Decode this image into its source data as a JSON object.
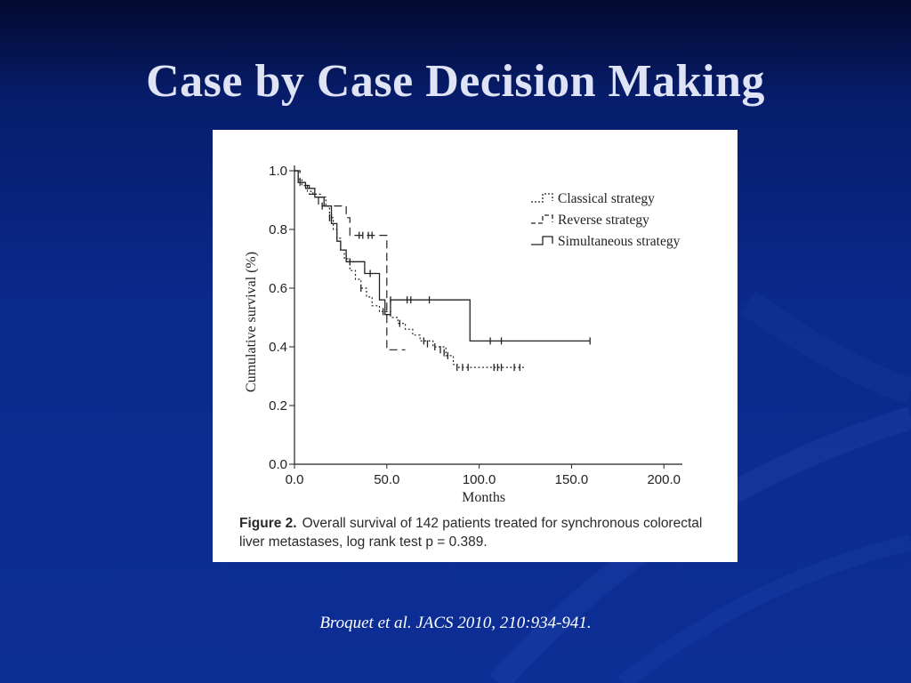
{
  "slide": {
    "title": "Case by Case Decision Making",
    "citation_authors": "Broquet et al",
    "citation_rest": ". JACS 2010, 210:934-941."
  },
  "figure": {
    "label": "Figure 2.",
    "caption": "Overall survival of 142 patients treated for synchronous colorectal liver metastases, log rank test p = 0.389."
  },
  "colors": {
    "background": "#0a2a8c",
    "title": "#dfe3f6",
    "panel": "#ffffff",
    "ink": "#222222"
  },
  "chart_data": {
    "type": "line",
    "xlabel": "Months",
    "ylabel": "Cumulative survival (%)",
    "xlim": [
      0,
      210
    ],
    "ylim": [
      0,
      1.0
    ],
    "xticks": [
      0,
      50,
      100,
      150,
      200
    ],
    "xtick_labels": [
      "0.0",
      "50.0",
      "100.0",
      "150.0",
      "200.0"
    ],
    "yticks": [
      0,
      0.2,
      0.4,
      0.6,
      0.8,
      1.0
    ],
    "ytick_labels": [
      "0.0",
      "0.2",
      "0.4",
      "0.6",
      "0.8",
      "1.0"
    ],
    "legend_position": "top-right",
    "grid": false,
    "series": [
      {
        "name": "Classical strategy",
        "style": "dotted",
        "steps": [
          [
            0,
            1.0
          ],
          [
            2,
            0.97
          ],
          [
            4,
            0.95
          ],
          [
            7,
            0.93
          ],
          [
            10,
            0.92
          ],
          [
            14,
            0.91
          ],
          [
            17,
            0.88
          ],
          [
            19,
            0.84
          ],
          [
            21,
            0.8
          ],
          [
            23,
            0.77
          ],
          [
            25,
            0.73
          ],
          [
            27,
            0.7
          ],
          [
            30,
            0.66
          ],
          [
            33,
            0.63
          ],
          [
            36,
            0.6
          ],
          [
            39,
            0.57
          ],
          [
            42,
            0.54
          ],
          [
            46,
            0.52
          ],
          [
            52,
            0.5
          ],
          [
            56,
            0.48
          ],
          [
            60,
            0.46
          ],
          [
            64,
            0.44
          ],
          [
            68,
            0.42
          ],
          [
            75,
            0.4
          ],
          [
            82,
            0.37
          ],
          [
            86,
            0.34
          ],
          [
            88,
            0.33
          ],
          [
            125,
            0.33
          ]
        ],
        "censored": [
          [
            20,
            0.84
          ],
          [
            36,
            0.6
          ],
          [
            48,
            0.52
          ],
          [
            57,
            0.48
          ],
          [
            70,
            0.42
          ],
          [
            72,
            0.41
          ],
          [
            76,
            0.4
          ],
          [
            79,
            0.39
          ],
          [
            81,
            0.38
          ],
          [
            83,
            0.37
          ],
          [
            88,
            0.33
          ],
          [
            91,
            0.33
          ],
          [
            94,
            0.33
          ],
          [
            108,
            0.33
          ],
          [
            110,
            0.33
          ],
          [
            112,
            0.33
          ],
          [
            119,
            0.33
          ],
          [
            122,
            0.33
          ]
        ]
      },
      {
        "name": "Reverse strategy",
        "style": "dashed",
        "steps": [
          [
            0,
            1.0
          ],
          [
            3,
            0.95
          ],
          [
            8,
            0.92
          ],
          [
            13,
            0.88
          ],
          [
            28,
            0.84
          ],
          [
            30,
            0.78
          ],
          [
            50,
            0.39
          ],
          [
            60,
            0.39
          ]
        ],
        "censored": [
          [
            15,
            0.88
          ],
          [
            35,
            0.78
          ],
          [
            37,
            0.78
          ],
          [
            40,
            0.78
          ],
          [
            42,
            0.78
          ]
        ]
      },
      {
        "name": "Simultaneous strategy",
        "style": "solid",
        "steps": [
          [
            0,
            1.0
          ],
          [
            2,
            0.96
          ],
          [
            6,
            0.94
          ],
          [
            11,
            0.91
          ],
          [
            16,
            0.88
          ],
          [
            20,
            0.82
          ],
          [
            23,
            0.76
          ],
          [
            25,
            0.73
          ],
          [
            28,
            0.69
          ],
          [
            38,
            0.65
          ],
          [
            46,
            0.56
          ],
          [
            49,
            0.51
          ],
          [
            52,
            0.56
          ],
          [
            95,
            0.56
          ],
          [
            95,
            0.42
          ],
          [
            160,
            0.42
          ]
        ],
        "censored": [
          [
            19,
            0.84
          ],
          [
            30,
            0.69
          ],
          [
            41,
            0.65
          ],
          [
            52,
            0.56
          ],
          [
            61,
            0.56
          ],
          [
            63,
            0.56
          ],
          [
            73,
            0.56
          ],
          [
            106,
            0.42
          ],
          [
            112,
            0.42
          ],
          [
            160,
            0.42
          ]
        ]
      }
    ]
  }
}
